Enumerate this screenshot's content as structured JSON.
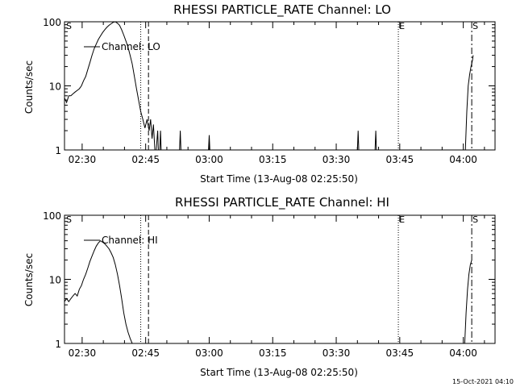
{
  "chart_data": [
    {
      "type": "line",
      "title": "RHESSI PARTICLE_RATE Channel: LO",
      "xlabel": "Start Time (13-Aug-08 02:25:50)",
      "ylabel": "Counts/sec",
      "yscale": "log",
      "ylim": [
        1,
        100
      ],
      "xlim": [
        "02:25:50",
        "04:07:30"
      ],
      "xticks": [
        "02:30",
        "02:45",
        "03:00",
        "03:15",
        "03:30",
        "03:45",
        "04:00"
      ],
      "yticks": [
        "1",
        "10",
        "100"
      ],
      "legend": {
        "label": "Channel: LO",
        "placement": "top-left"
      },
      "markers": [
        {
          "label": "S",
          "time": "02:25:50",
          "style": "none"
        },
        {
          "label": "",
          "time": "02:43:50",
          "style": "dotted"
        },
        {
          "label": "",
          "time": "02:45:40",
          "style": "dashed"
        },
        {
          "label": "E",
          "time": "03:44:40",
          "style": "dotted"
        },
        {
          "label": "S",
          "time": "04:02:00",
          "style": "dashdot"
        }
      ],
      "series": [
        {
          "name": "Channel: LO",
          "segments": [
            {
              "x": [
                "02:25:50",
                "02:26:20",
                "02:26:50",
                "02:27:20",
                "02:27:50",
                "02:28:20",
                "02:28:50",
                "02:29:20",
                "02:29:50",
                "02:30:20",
                "02:30:50",
                "02:31:20",
                "02:31:50",
                "02:32:20",
                "02:32:50",
                "02:33:20",
                "02:33:50",
                "02:34:20",
                "02:34:50",
                "02:35:20",
                "02:35:50",
                "02:36:20",
                "02:36:50",
                "02:37:20",
                "02:37:50",
                "02:38:20",
                "02:38:50",
                "02:39:20",
                "02:39:50",
                "02:40:20",
                "02:40:50",
                "02:41:20",
                "02:41:50",
                "02:42:20",
                "02:42:50",
                "02:43:20",
                "02:43:50",
                "02:44:20",
                "02:44:50",
                "02:45:20",
                "02:45:50",
                "02:46:10",
                "02:46:30",
                "02:46:50",
                "02:47:10"
              ],
              "y": [
                6.5,
                5.5,
                7,
                7,
                7.5,
                8,
                8.5,
                9,
                10,
                12,
                14,
                18,
                23,
                30,
                38,
                45,
                53,
                60,
                68,
                75,
                82,
                88,
                93,
                98,
                100,
                95,
                88,
                75,
                62,
                50,
                40,
                30,
                22,
                14,
                9,
                6,
                4,
                3,
                2.2,
                3,
                2,
                3,
                1.5,
                2.5,
                1
              ]
            },
            {
              "x": [
                "02:47:30",
                "02:47:50",
                "02:48:00",
                "02:48:20",
                "02:48:30",
                "02:48:40",
                "02:48:50"
              ],
              "y": [
                1,
                2,
                1,
                1,
                2,
                1,
                1
              ]
            },
            {
              "x": [
                "02:53:00",
                "02:53:10",
                "02:53:20"
              ],
              "y": [
                1,
                2,
                1
              ]
            },
            {
              "x": [
                "02:59:50",
                "03:00:00",
                "03:00:10"
              ],
              "y": [
                1,
                1.7,
                1
              ]
            },
            {
              "x": [
                "03:35:00",
                "03:35:10",
                "03:35:20"
              ],
              "y": [
                1,
                2,
                1
              ]
            },
            {
              "x": [
                "03:39:10",
                "03:39:20",
                "03:39:30"
              ],
              "y": [
                1,
                2,
                1
              ]
            },
            {
              "x": [
                "04:00:30",
                "04:00:50",
                "04:01:10",
                "04:01:30",
                "04:01:50",
                "04:02:10",
                "04:02:20"
              ],
              "y": [
                1,
                4,
                10,
                15,
                20,
                25,
                30
              ]
            }
          ]
        }
      ]
    },
    {
      "type": "line",
      "title": "RHESSI PARTICLE_RATE Channel: HI",
      "xlabel": "Start Time (13-Aug-08 02:25:50)",
      "ylabel": "Counts/sec",
      "yscale": "log",
      "ylim": [
        1,
        100
      ],
      "xlim": [
        "02:25:50",
        "04:07:30"
      ],
      "xticks": [
        "02:30",
        "02:45",
        "03:00",
        "03:15",
        "03:30",
        "03:45",
        "04:00"
      ],
      "yticks": [
        "1",
        "10",
        "100"
      ],
      "legend": {
        "label": "Channel: HI",
        "placement": "top-left"
      },
      "markers": [
        {
          "label": "S",
          "time": "02:25:50",
          "style": "none"
        },
        {
          "label": "",
          "time": "02:43:50",
          "style": "dotted"
        },
        {
          "label": "",
          "time": "02:45:40",
          "style": "dashed"
        },
        {
          "label": "E",
          "time": "03:44:40",
          "style": "dotted"
        },
        {
          "label": "S",
          "time": "04:02:00",
          "style": "dashdot"
        }
      ],
      "series": [
        {
          "name": "Channel: HI",
          "segments": [
            {
              "x": [
                "02:25:50",
                "02:26:20",
                "02:26:50",
                "02:27:20",
                "02:27:50",
                "02:28:20",
                "02:28:50",
                "02:29:20",
                "02:29:50",
                "02:30:20",
                "02:30:50",
                "02:31:20",
                "02:31:50",
                "02:32:20",
                "02:32:50",
                "02:33:20",
                "02:33:50",
                "02:34:20",
                "02:34:50",
                "02:35:20",
                "02:35:50",
                "02:36:20",
                "02:36:50",
                "02:37:20",
                "02:37:50",
                "02:38:20",
                "02:38:50",
                "02:39:20",
                "02:39:50",
                "02:40:20",
                "02:40:50",
                "02:41:20",
                "02:41:50"
              ],
              "y": [
                4.5,
                5,
                4.5,
                5,
                5.5,
                6,
                5.5,
                7,
                8,
                10,
                12,
                15,
                19,
                23,
                28,
                33,
                37,
                40,
                38,
                36,
                33,
                30,
                26,
                22,
                17,
                12,
                8,
                5,
                3,
                2,
                1.5,
                1.2,
                1
              ]
            },
            {
              "x": [
                "04:00:20",
                "04:00:40",
                "04:01:00",
                "04:01:20",
                "04:01:40",
                "04:02:00"
              ],
              "y": [
                1,
                3,
                7,
                12,
                17,
                20
              ]
            }
          ]
        }
      ]
    }
  ],
  "footer": {
    "timestamp": "15-Oct-2021 04:10"
  }
}
